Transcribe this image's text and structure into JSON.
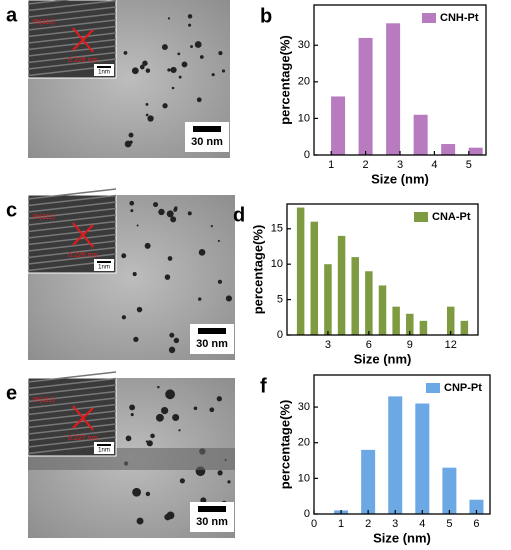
{
  "panels": [
    {
      "label": "a",
      "scale_bar": "30 nm",
      "inset_scale": "1nm",
      "lattice": "Pt(111)",
      "spacing": "0.226 nm"
    },
    {
      "label": "c",
      "scale_bar": "30 nm",
      "inset_scale": "1nm",
      "lattice": "Pt(111)",
      "spacing": "0.226 nm"
    },
    {
      "label": "e",
      "scale_bar": "30 nm",
      "inset_scale": "1nm",
      "lattice": "Pt(111)",
      "spacing": "0.227 nm"
    }
  ],
  "chart_data": [
    {
      "type": "bar",
      "panel_label": "b",
      "xlabel": "Size (nm)",
      "ylabel": "percentage(%)",
      "x": [
        1.2,
        2.0,
        2.8,
        3.6,
        4.4,
        5.2
      ],
      "series": [
        {
          "name": "CNH-Pt",
          "color": "#b87bc0",
          "values": [
            16,
            32,
            36,
            11,
            3,
            2
          ]
        }
      ],
      "xlim": [
        0.5,
        5.5
      ],
      "xticks": [
        1,
        2,
        3,
        4,
        5
      ],
      "ylim": [
        0,
        41
      ],
      "yticks": [
        0,
        10,
        20,
        30
      ],
      "legend": "upper right"
    },
    {
      "type": "bar",
      "panel_label": "d",
      "xlabel": "Size (nm)",
      "ylabel": "percentage(%)",
      "x": [
        1,
        2,
        3,
        4,
        5,
        6,
        7,
        8,
        9,
        10,
        11,
        12,
        13
      ],
      "series": [
        {
          "name": "CNA-Pt",
          "color": "#7f9b42",
          "values": [
            18,
            16,
            10,
            14,
            11,
            9,
            7,
            4,
            3,
            2,
            0,
            4,
            2
          ]
        }
      ],
      "xlim": [
        0,
        14
      ],
      "xticks": [
        3,
        6,
        9,
        12
      ],
      "ylim": [
        0,
        18.5
      ],
      "yticks": [
        0,
        5,
        10,
        15
      ],
      "legend": "upper right"
    },
    {
      "type": "bar",
      "panel_label": "f",
      "xlabel": "Size (nm)",
      "ylabel": "percentage(%)",
      "x": [
        1,
        2,
        3,
        4,
        5,
        6
      ],
      "series": [
        {
          "name": "CNP-Pt",
          "color": "#6ca9e4",
          "values": [
            1,
            18,
            33,
            31,
            13,
            4
          ]
        }
      ],
      "xlim": [
        0,
        6.5
      ],
      "xticks": [
        0,
        1,
        2,
        3,
        4,
        5,
        6
      ],
      "ylim": [
        0,
        39
      ],
      "yticks": [
        0,
        10,
        20,
        30
      ],
      "legend": "upper right"
    }
  ]
}
